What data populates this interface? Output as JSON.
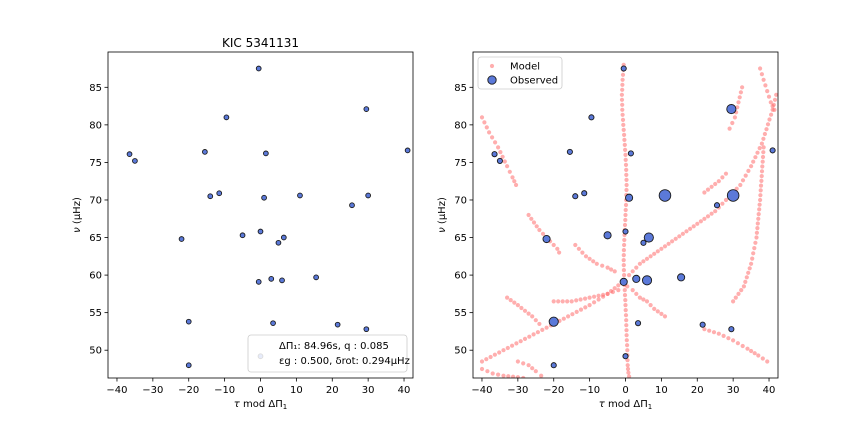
{
  "figure": {
    "left_title": "KIC 5341131",
    "ylabel": "ν (μHz)",
    "xlabel": "τ mod ΔΠ₁",
    "annotation_line1": "ΔΠ₁: 84.96s, q :  0.085",
    "annotation_line2": "εg : 0.500, δrot: 0.294μHz"
  },
  "chart_data": [
    {
      "type": "scatter",
      "title": "KIC 5341131",
      "xlabel": "τ mod ΔΠ₁",
      "ylabel": "ν (μHz)",
      "xlim": [
        -42.5,
        42.5
      ],
      "ylim": [
        46.3,
        89.7
      ],
      "xticks": [
        -40,
        -30,
        -20,
        -10,
        0,
        10,
        20,
        30,
        40
      ],
      "yticks": [
        50,
        55,
        60,
        65,
        70,
        75,
        80,
        85
      ],
      "grid": false,
      "series": [
        {
          "color": "#5b79d9",
          "x": [
            -0.5,
            -36.5,
            -35,
            -15.5,
            -9.5,
            1.5,
            -14,
            -11.5,
            1,
            11,
            25.5,
            30,
            29.5,
            -5,
            0,
            -22,
            6.5,
            5,
            -0.5,
            3,
            6,
            15.5,
            -20,
            3.5,
            21.5,
            29.5,
            0,
            -20,
            41
          ],
          "y": [
            87.5,
            76.1,
            75.2,
            76.4,
            81.0,
            76.2,
            70.5,
            70.9,
            70.3,
            70.6,
            69.3,
            70.6,
            82.1,
            65.3,
            65.8,
            64.8,
            65.0,
            64.3,
            59.1,
            59.5,
            59.3,
            59.7,
            53.8,
            53.6,
            53.4,
            52.8,
            49.2,
            48.0,
            76.6
          ]
        }
      ],
      "annotation": [
        "ΔΠ₁: 84.96s, q :  0.085",
        "εg : 0.500, δrot: 0.294μHz"
      ]
    },
    {
      "type": "scatter",
      "xlabel": "τ mod ΔΠ₁",
      "ylabel": "ν (μHz)",
      "xlim": [
        -42.5,
        42.5
      ],
      "ylim": [
        46.3,
        89.7
      ],
      "xticks": [
        -40,
        -30,
        -20,
        -10,
        0,
        10,
        20,
        30,
        40
      ],
      "yticks": [
        50,
        55,
        60,
        65,
        70,
        75,
        80,
        85
      ],
      "grid": false,
      "legend_position": "top-left",
      "series": [
        {
          "name": "Model",
          "color": "#ff6b6b",
          "curves": [
            {
              "x": [
                -0.5,
                -0.8,
                -1.0,
                -0.9,
                -0.6,
                -0.3,
                0.0,
                0.2,
                0.3,
                0.2,
                0.0,
                -0.2,
                -0.4,
                -0.5,
                -0.4,
                -0.2,
                0.0,
                0.2,
                0.3,
                0.5,
                0.6,
                0.8,
                1.0
              ],
              "y": [
                88.0,
                86.0,
                84.0,
                82.0,
                80.0,
                78.0,
                76.0,
                74.0,
                72.0,
                70.0,
                68.0,
                66.0,
                64.0,
                62.0,
                60.0,
                58.0,
                56.0,
                54.0,
                52.0,
                50.0,
                48.0,
                47.0,
                46.5
              ]
            },
            {
              "x": [
                -40.0,
                -38.0,
                -35.5,
                -33.0,
                -31.5,
                -30.5
              ],
              "y": [
                81.0,
                79.0,
                77.0,
                74.5,
                73.0,
                72.0
              ]
            },
            {
              "x": [
                -27.0,
                -24.0,
                -21.0,
                -19.0,
                -18.5
              ],
              "y": [
                68.0,
                66.0,
                64.5,
                63.5,
                63.0
              ]
            },
            {
              "x": [
                -14.0,
                -11.0,
                -8.0,
                -5.0,
                -3.0
              ],
              "y": [
                64.0,
                62.5,
                61.5,
                61.0,
                60.5
              ]
            },
            {
              "x": [
                -40.0,
                -34.0,
                -28.0,
                -22.0,
                -16.0,
                -10.0,
                -5.0,
                -1.0
              ],
              "y": [
                48.5,
                50.0,
                51.5,
                53.0,
                54.5,
                56.0,
                57.5,
                59.0
              ]
            },
            {
              "x": [
                -40.0,
                -37.0,
                -34.0,
                -30.0,
                -28.5
              ],
              "y": [
                47.5,
                46.9,
                46.6,
                46.4,
                46.3
              ]
            },
            {
              "x": [
                1.0,
                4.0,
                7.0,
                10.0,
                13.0,
                16.0,
                19.0,
                22.0,
                25.0,
                28.0,
                30.0,
                32.0,
                35.0,
                38.0,
                41.0,
                42.0
              ],
              "y": [
                60.0,
                61.5,
                62.5,
                63.5,
                64.5,
                65.5,
                66.5,
                67.5,
                68.5,
                70.0,
                71.0,
                72.0,
                74.5,
                77.5,
                82.0,
                84.0
              ]
            },
            {
              "x": [
                0.5,
                2.0,
                4.0,
                6.0,
                8.0,
                11.0
              ],
              "y": [
                58.5,
                58.0,
                57.0,
                56.5,
                55.5,
                54.5
              ]
            },
            {
              "x": [
                22.0,
                26.0,
                30.0,
                34.0,
                37.0,
                39.5
              ],
              "y": [
                52.8,
                52.2,
                51.3,
                50.2,
                49.3,
                48.5
              ]
            },
            {
              "x": [
                30.0,
                33.0,
                35.0,
                36.5,
                37.5,
                38.5
              ],
              "y": [
                56.5,
                58.5,
                61.5,
                65.0,
                70.0,
                77.0
              ]
            },
            {
              "x": [
                37.5,
                38.5,
                39.5,
                40.5,
                41.5
              ],
              "y": [
                87.5,
                86.0,
                84.5,
                83.0,
                82.0
              ]
            },
            {
              "x": [
                29.0,
                30.5,
                31.5,
                32.5
              ],
              "y": [
                79.5,
                81.0,
                83.0,
                85.0
              ]
            },
            {
              "x": [
                -20.0,
                -15.0,
                -10.0,
                -5.0,
                -2.0
              ],
              "y": [
                56.5,
                56.5,
                57.0,
                57.5,
                58.0
              ]
            },
            {
              "x": [
                -30.0,
                -27.0,
                -25.0,
                -23.5
              ],
              "y": [
                48.5,
                48.0,
                47.2,
                46.6
              ]
            },
            {
              "x": [
                -33.0,
                -30.0,
                -26.0,
                -24.0
              ],
              "y": [
                57.0,
                56.0,
                54.5,
                53.5
              ]
            },
            {
              "x": [
                22.0,
                26.0,
                28.0
              ],
              "y": [
                71.0,
                72.5,
                73.5
              ]
            }
          ]
        },
        {
          "name": "Observed",
          "color": "#5b79d9",
          "x": [
            -0.5,
            -36.5,
            -35,
            -15.5,
            -9.5,
            1.5,
            -14,
            -11.5,
            1,
            11,
            25.5,
            30,
            29.5,
            -5,
            0,
            -22,
            6.5,
            5,
            -0.5,
            3,
            6,
            15.5,
            -20,
            3.5,
            21.5,
            29.5,
            0,
            -20,
            41
          ],
          "y": [
            87.5,
            76.1,
            75.2,
            76.4,
            81.0,
            76.2,
            70.5,
            70.9,
            70.3,
            70.6,
            69.3,
            70.6,
            82.1,
            65.3,
            65.8,
            64.8,
            65.0,
            64.3,
            59.1,
            59.5,
            59.3,
            59.7,
            53.8,
            53.6,
            53.4,
            52.8,
            49.2,
            48.0,
            76.6
          ],
          "size": [
            1,
            1,
            1,
            1,
            1,
            1,
            1,
            1,
            2,
            4,
            1,
            4,
            3,
            2,
            1,
            2,
            3,
            1,
            2,
            2,
            3,
            2,
            3,
            1,
            1,
            1,
            1,
            1,
            1
          ]
        }
      ]
    }
  ]
}
